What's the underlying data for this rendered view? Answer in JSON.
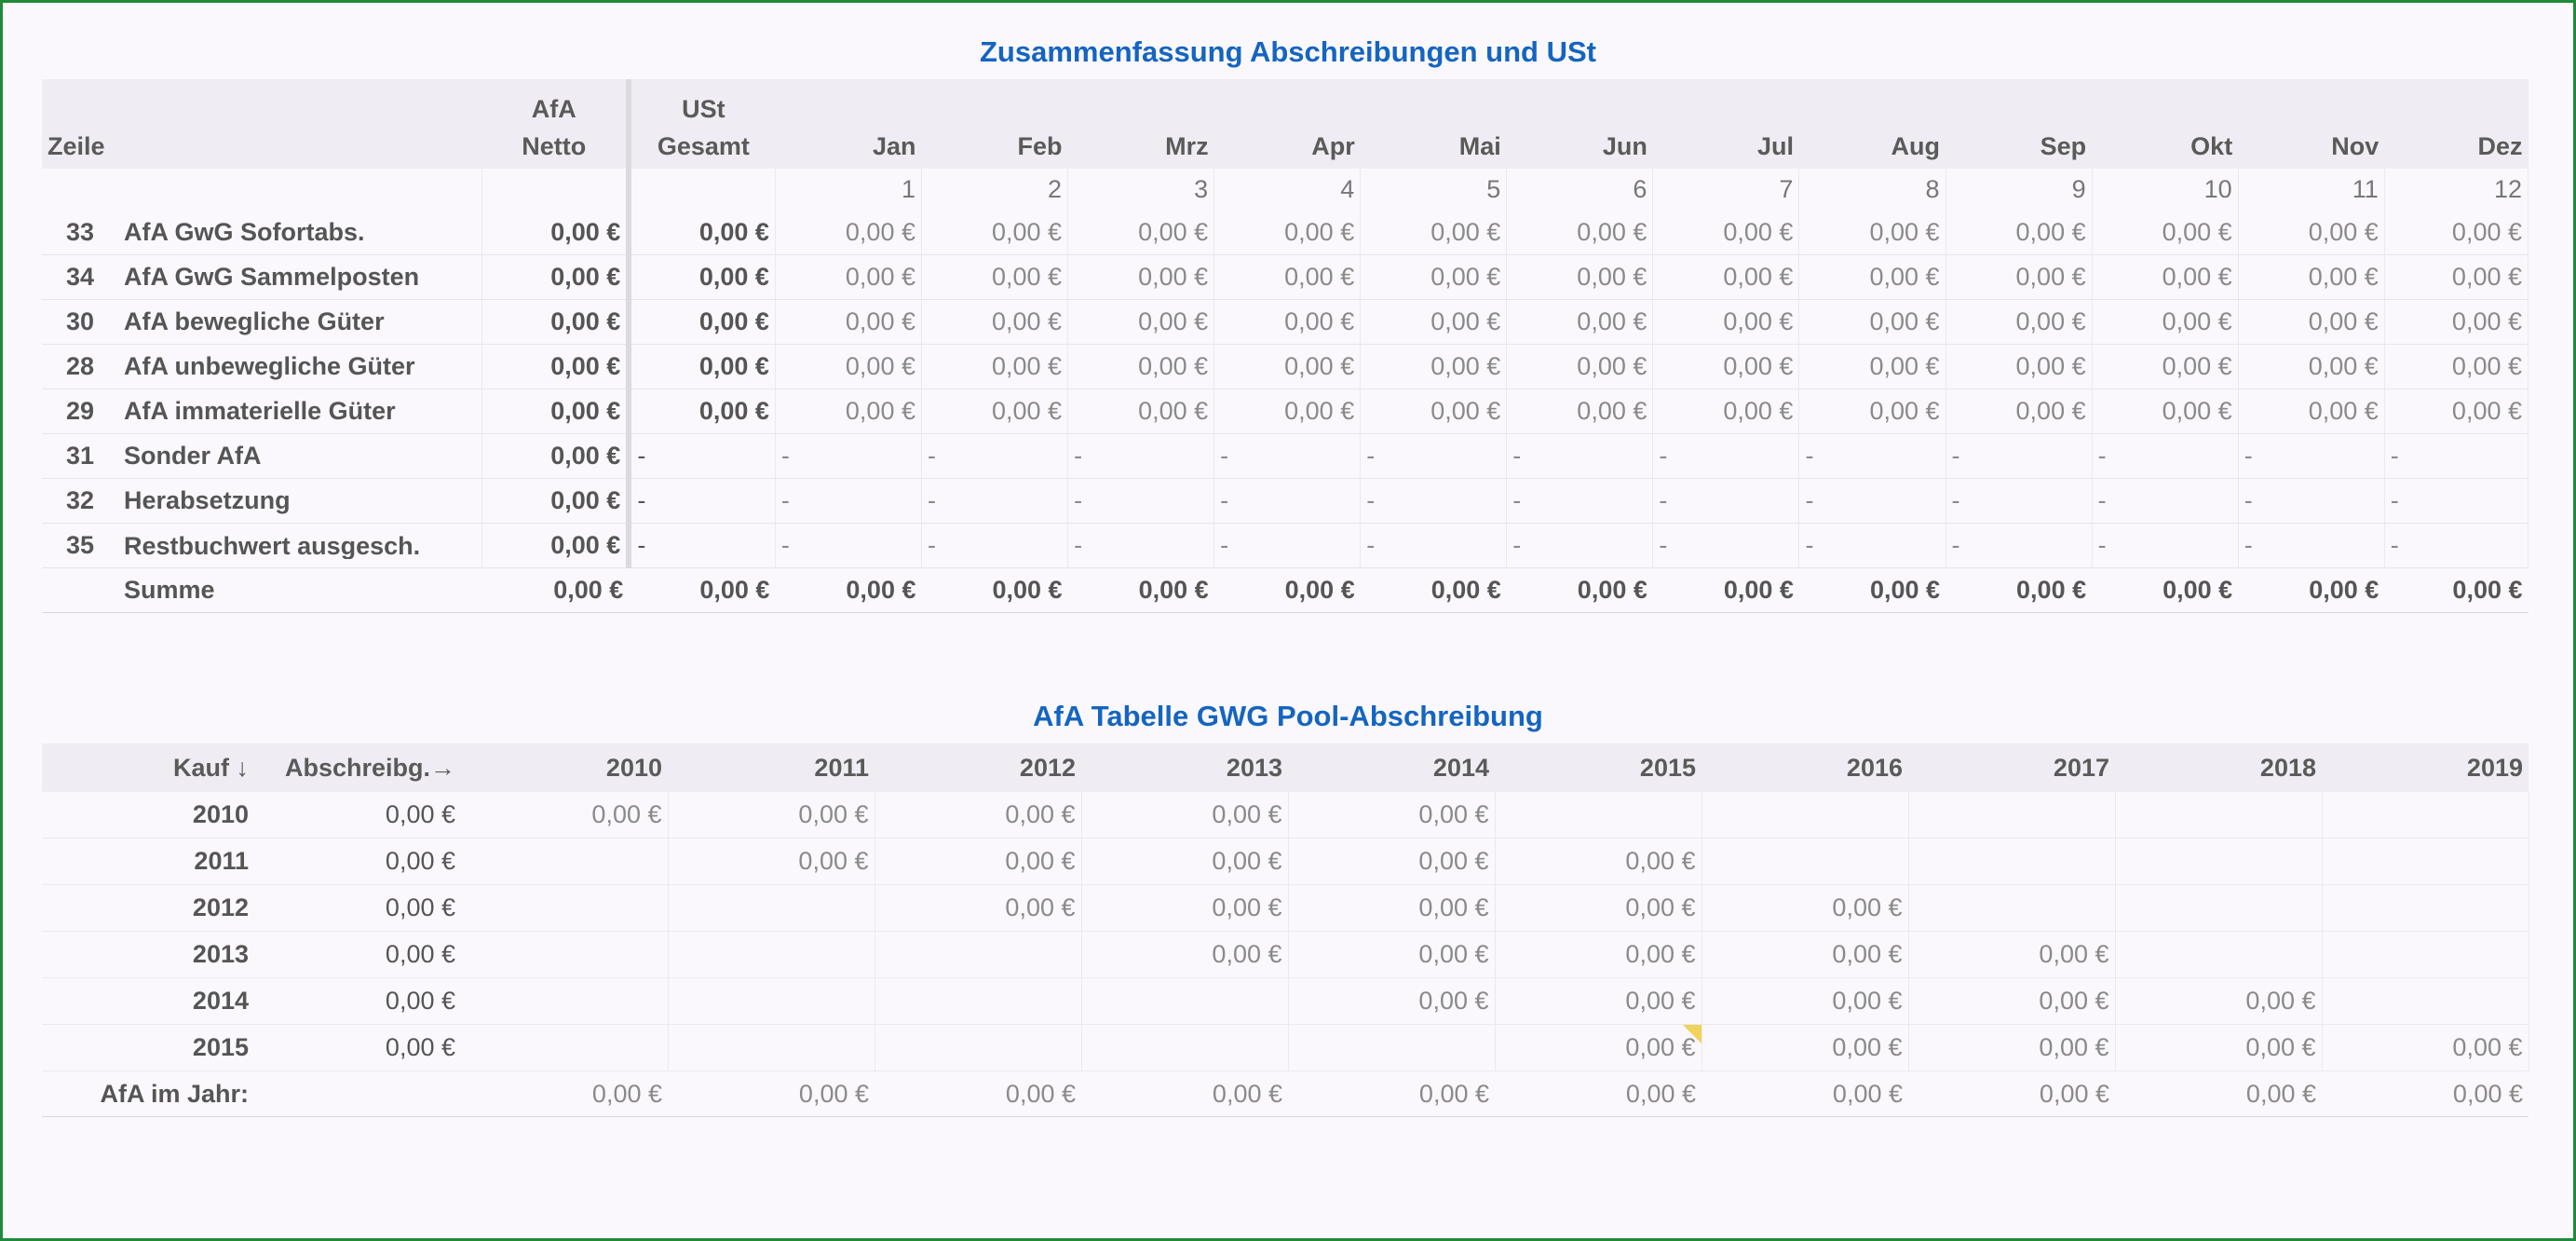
{
  "summary": {
    "title": "Zusammenfassung Abschreibungen und USt",
    "header": {
      "afa_top": "AfA",
      "ust_top": "USt",
      "zeile": "Zeile",
      "netto": "Netto",
      "gesamt": "Gesamt",
      "months": [
        "Jan",
        "Feb",
        "Mrz",
        "Apr",
        "Mai",
        "Jun",
        "Jul",
        "Aug",
        "Sep",
        "Okt",
        "Nov",
        "Dez"
      ],
      "month_numbers": [
        "1",
        "2",
        "3",
        "4",
        "5",
        "6",
        "7",
        "8",
        "9",
        "10",
        "11",
        "12"
      ]
    },
    "rows": [
      {
        "zeile": "33",
        "label": "AfA GwG Sofortabs.",
        "netto": "0,00 €",
        "gesamt": "0,00 €",
        "months": [
          "0,00 €",
          "0,00 €",
          "0,00 €",
          "0,00 €",
          "0,00 €",
          "0,00 €",
          "0,00 €",
          "0,00 €",
          "0,00 €",
          "0,00 €",
          "0,00 €",
          "0,00 €"
        ]
      },
      {
        "zeile": "34",
        "label": "AfA GwG Sammelposten",
        "netto": "0,00 €",
        "gesamt": "0,00 €",
        "months": [
          "0,00 €",
          "0,00 €",
          "0,00 €",
          "0,00 €",
          "0,00 €",
          "0,00 €",
          "0,00 €",
          "0,00 €",
          "0,00 €",
          "0,00 €",
          "0,00 €",
          "0,00 €"
        ]
      },
      {
        "zeile": "30",
        "label": "AfA bewegliche Güter",
        "netto": "0,00 €",
        "gesamt": "0,00 €",
        "months": [
          "0,00 €",
          "0,00 €",
          "0,00 €",
          "0,00 €",
          "0,00 €",
          "0,00 €",
          "0,00 €",
          "0,00 €",
          "0,00 €",
          "0,00 €",
          "0,00 €",
          "0,00 €"
        ]
      },
      {
        "zeile": "28",
        "label": "AfA unbewegliche Güter",
        "netto": "0,00 €",
        "gesamt": "0,00 €",
        "months": [
          "0,00 €",
          "0,00 €",
          "0,00 €",
          "0,00 €",
          "0,00 €",
          "0,00 €",
          "0,00 €",
          "0,00 €",
          "0,00 €",
          "0,00 €",
          "0,00 €",
          "0,00 €"
        ]
      },
      {
        "zeile": "29",
        "label": "AfA immaterielle Güter",
        "netto": "0,00 €",
        "gesamt": "0,00 €",
        "months": [
          "0,00 €",
          "0,00 €",
          "0,00 €",
          "0,00 €",
          "0,00 €",
          "0,00 €",
          "0,00 €",
          "0,00 €",
          "0,00 €",
          "0,00 €",
          "0,00 €",
          "0,00 €"
        ]
      },
      {
        "zeile": "31",
        "label": "Sonder AfA",
        "netto": "0,00 €",
        "gesamt": "-",
        "months": [
          "-",
          "-",
          "-",
          "-",
          "-",
          "-",
          "-",
          "-",
          "-",
          "-",
          "-",
          "-"
        ]
      },
      {
        "zeile": "32",
        "label": "Herabsetzung",
        "netto": "0,00 €",
        "gesamt": "-",
        "months": [
          "-",
          "-",
          "-",
          "-",
          "-",
          "-",
          "-",
          "-",
          "-",
          "-",
          "-",
          "-"
        ]
      },
      {
        "zeile": "35",
        "label": "Restbuchwert ausgesch.",
        "netto": "0,00 €",
        "gesamt": "-",
        "months": [
          "-",
          "-",
          "-",
          "-",
          "-",
          "-",
          "-",
          "-",
          "-",
          "-",
          "-",
          "-"
        ]
      }
    ],
    "sum": {
      "label": "Summe",
      "netto": "0,00 €",
      "gesamt": "0,00 €",
      "months": [
        "0,00 €",
        "0,00 €",
        "0,00 €",
        "0,00 €",
        "0,00 €",
        "0,00 €",
        "0,00 €",
        "0,00 €",
        "0,00 €",
        "0,00 €",
        "0,00 €",
        "0,00 €"
      ]
    }
  },
  "pool": {
    "title": "AfA Tabelle GWG Pool-Abschreibung",
    "header": {
      "kauf": "Kauf ↓",
      "abschreibg": "Abschreibg.→",
      "years": [
        "2010",
        "2011",
        "2012",
        "2013",
        "2014",
        "2015",
        "2016",
        "2017",
        "2018",
        "2019"
      ]
    },
    "rows": [
      {
        "year": "2010",
        "amount": "0,00 €",
        "cells": [
          "0,00 €",
          "0,00 €",
          "0,00 €",
          "0,00 €",
          "0,00 €",
          "",
          "",
          "",
          "",
          ""
        ]
      },
      {
        "year": "2011",
        "amount": "0,00 €",
        "cells": [
          "",
          "0,00 €",
          "0,00 €",
          "0,00 €",
          "0,00 €",
          "0,00 €",
          "",
          "",
          "",
          ""
        ]
      },
      {
        "year": "2012",
        "amount": "0,00 €",
        "cells": [
          "",
          "",
          "0,00 €",
          "0,00 €",
          "0,00 €",
          "0,00 €",
          "0,00 €",
          "",
          "",
          ""
        ]
      },
      {
        "year": "2013",
        "amount": "0,00 €",
        "cells": [
          "",
          "",
          "",
          "0,00 €",
          "0,00 €",
          "0,00 €",
          "0,00 €",
          "0,00 €",
          "",
          ""
        ]
      },
      {
        "year": "2014",
        "amount": "0,00 €",
        "cells": [
          "",
          "",
          "",
          "",
          "0,00 €",
          "0,00 €",
          "0,00 €",
          "0,00 €",
          "0,00 €",
          ""
        ]
      },
      {
        "year": "2015",
        "amount": "0,00 €",
        "cells": [
          "",
          "",
          "",
          "",
          "",
          "0,00 €",
          "0,00 €",
          "0,00 €",
          "0,00 €",
          "0,00 €"
        ]
      }
    ],
    "footer": {
      "label": "AfA im Jahr:",
      "cells": [
        "0,00 €",
        "0,00 €",
        "0,00 €",
        "0,00 €",
        "0,00 €",
        "0,00 €",
        "0,00 €",
        "0,00 €",
        "0,00 €",
        "0,00 €"
      ]
    }
  }
}
